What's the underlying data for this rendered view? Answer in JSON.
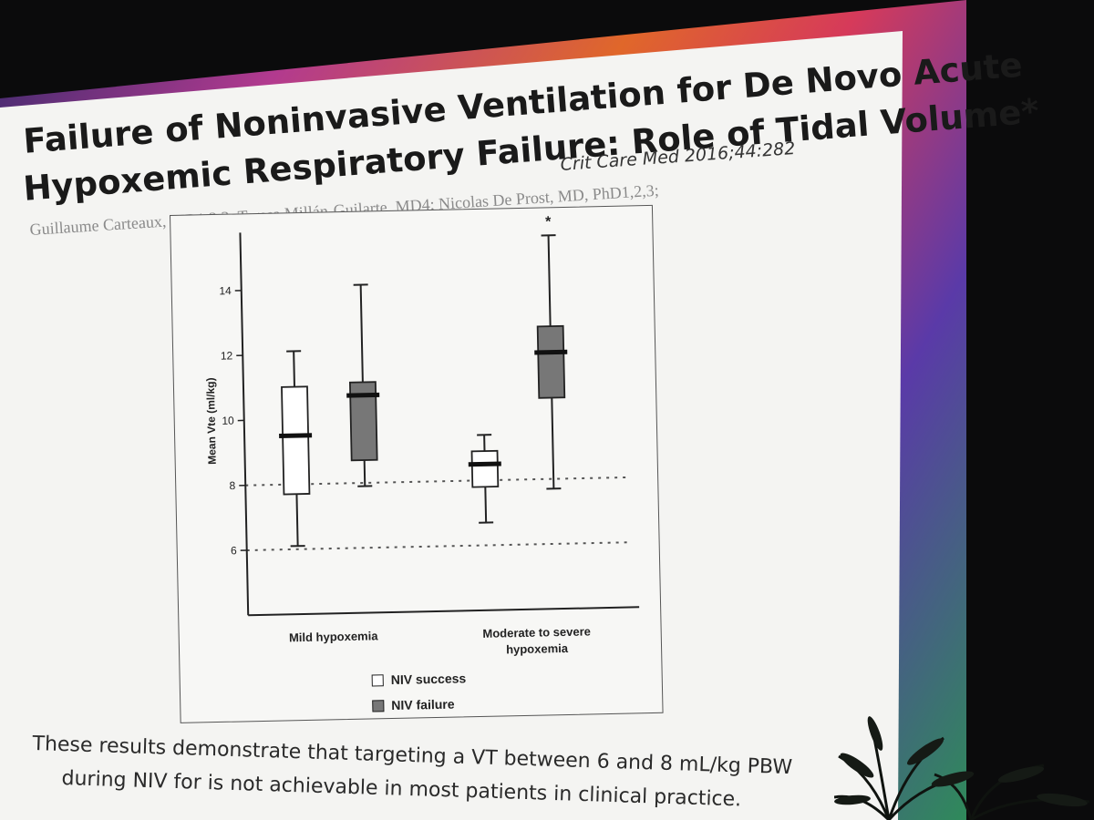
{
  "slide": {
    "title_line1": "Failure of Noninvasive Ventilation for De Novo Acute",
    "title_line2": "Hypoxemic Respiratory Failure: Role of Tidal Volume*",
    "citation": "Crit Care Med 2016;44:282",
    "authors": "Guillaume Carteaux, MD1,2,3; Teresa Millán-Guilarte, MD4; Nicolas De Prost, MD, PhD1,2,3;",
    "conclusion_line1": "These results demonstrate that targeting a VT between 6 and 8 mL/kg PBW",
    "conclusion_line2": "during NIV for is not achievable in most patients in clinical practice."
  },
  "chart_data": {
    "type": "boxplot",
    "ylabel": "Mean Vte (ml/kg)",
    "ylim": [
      4,
      15.5
    ],
    "yticks": [
      6,
      8,
      10,
      12,
      14
    ],
    "categories": [
      "Mild hypoxemia",
      "Moderate to severe hypoxemia"
    ],
    "series": [
      {
        "name": "NIV success",
        "color": "#ffffff",
        "boxes": [
          {
            "min": 6.1,
            "q1": 7.7,
            "median": 9.5,
            "q3": 11.0,
            "max": 12.1
          },
          {
            "min": 6.7,
            "q1": 7.8,
            "median": 8.5,
            "q3": 8.9,
            "max": 9.4
          }
        ]
      },
      {
        "name": "NIV failure",
        "color": "#777777",
        "boxes": [
          {
            "min": 7.9,
            "q1": 8.7,
            "median": 10.7,
            "q3": 11.1,
            "max": 14.1
          },
          {
            "min": 7.7,
            "q1": 10.5,
            "median": 11.9,
            "q3": 12.7,
            "max": 15.5
          }
        ]
      }
    ],
    "reference_lines": [
      6,
      8
    ],
    "annotations": [
      "*"
    ]
  }
}
